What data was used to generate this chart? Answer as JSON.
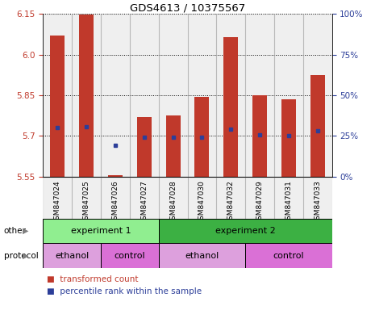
{
  "title": "GDS4613 / 10375567",
  "samples": [
    "GSM847024",
    "GSM847025",
    "GSM847026",
    "GSM847027",
    "GSM847028",
    "GSM847030",
    "GSM847032",
    "GSM847029",
    "GSM847031",
    "GSM847033"
  ],
  "bar_tops": [
    6.07,
    6.148,
    5.556,
    5.77,
    5.775,
    5.845,
    6.065,
    5.85,
    5.835,
    5.925
  ],
  "bar_bottoms": [
    5.55,
    5.55,
    5.55,
    5.55,
    5.55,
    5.55,
    5.55,
    5.55,
    5.55,
    5.55
  ],
  "blue_dot_y": [
    5.73,
    5.735,
    5.665,
    5.695,
    5.695,
    5.695,
    5.725,
    5.705,
    5.7,
    5.72
  ],
  "ylim": [
    5.55,
    6.15
  ],
  "yticks_left": [
    5.55,
    5.7,
    5.85,
    6.0,
    6.15
  ],
  "yticks_right": [
    0,
    25,
    50,
    75,
    100
  ],
  "bar_color": "#c0392b",
  "dot_color": "#2c3e99",
  "background_color": "#ffffff",
  "tick_label_color_left": "#c0392b",
  "tick_label_color_right": "#2c3e99",
  "legend_items": [
    "transformed count",
    "percentile rank within the sample"
  ],
  "groups_other": [
    {
      "label": "experiment 1",
      "start": 0,
      "end": 4,
      "color": "#90ee90"
    },
    {
      "label": "experiment 2",
      "start": 4,
      "end": 10,
      "color": "#3cb043"
    }
  ],
  "groups_protocol": [
    {
      "label": "ethanol",
      "start": 0,
      "end": 2,
      "color": "#dda0dd"
    },
    {
      "label": "control",
      "start": 2,
      "end": 4,
      "color": "#da70d6"
    },
    {
      "label": "ethanol",
      "start": 4,
      "end": 7,
      "color": "#dda0dd"
    },
    {
      "label": "control",
      "start": 7,
      "end": 10,
      "color": "#da70d6"
    }
  ],
  "other_label": "other",
  "protocol_label": "protocol",
  "sample_bg_color": "#d3d3d3",
  "bar_width": 0.5
}
